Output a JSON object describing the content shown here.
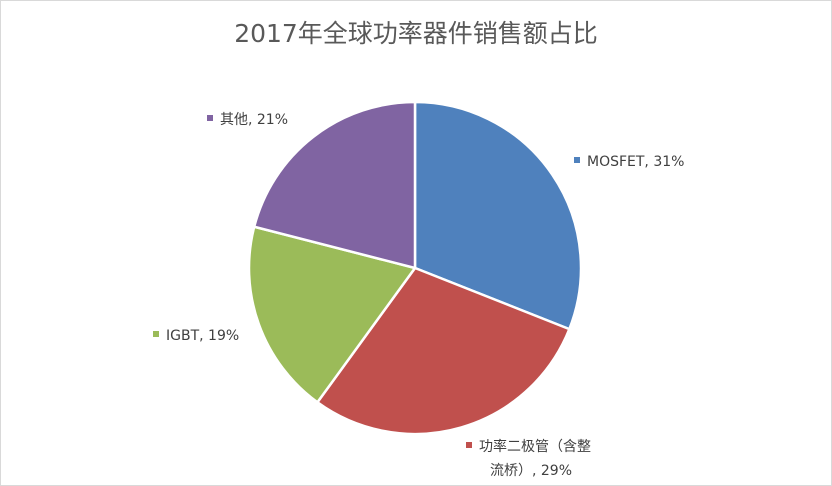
{
  "chart_data": {
    "type": "pie",
    "title": "2017年全球功率器件销售额占比",
    "slices": [
      {
        "label": "MOSFET",
        "value": 31,
        "pct_text": "31%",
        "color": "#4F81BD",
        "label_lines": [
          "MOSFET, 31%"
        ],
        "key": "mosfet"
      },
      {
        "label": "功率二极管（含整流桥）",
        "value": 29,
        "pct_text": "29%",
        "color": "#C0504D",
        "label_lines": [
          "功率二极管（含整",
          "流桥）, 29%"
        ],
        "key": "diode"
      },
      {
        "label": "IGBT",
        "value": 19,
        "pct_text": "19%",
        "color": "#9BBB59",
        "label_lines": [
          "IGBT, 19%"
        ],
        "key": "igbt"
      },
      {
        "label": "其他",
        "value": 21,
        "pct_text": "21%",
        "color": "#8064A2",
        "label_lines": [
          "其他, 21%"
        ],
        "key": "other"
      }
    ],
    "start_angle": "12 o'clock",
    "direction": "clockwise",
    "legend": "none (data labels with color markers)"
  }
}
